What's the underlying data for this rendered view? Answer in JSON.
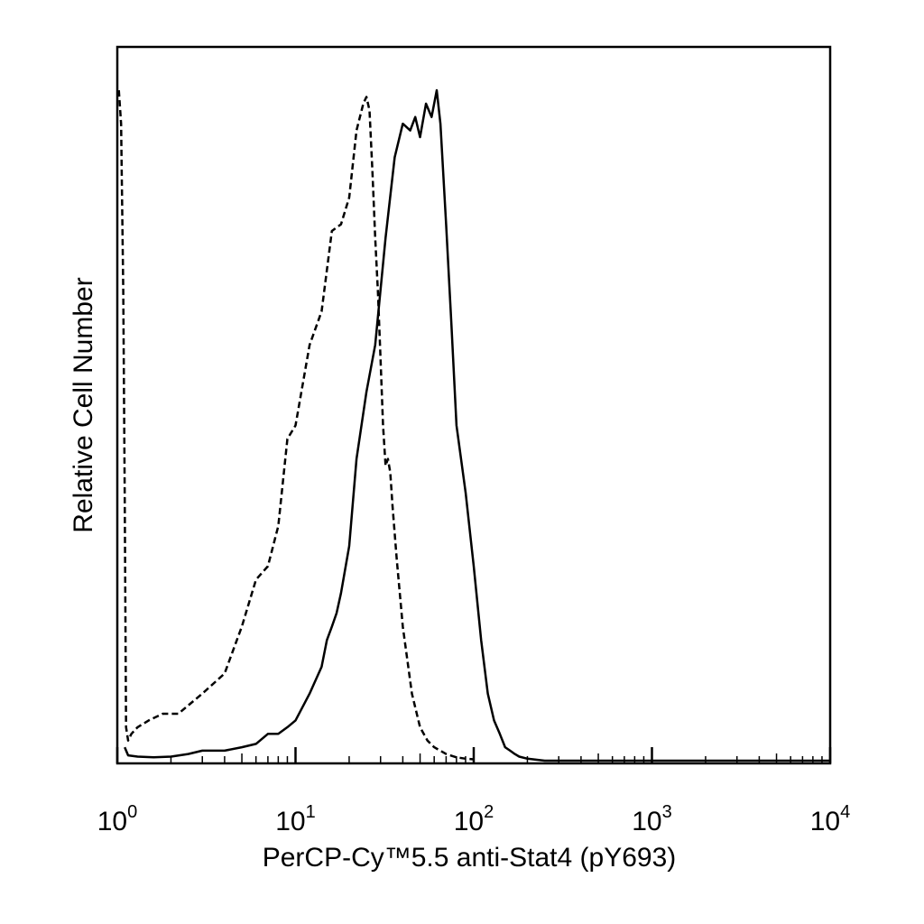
{
  "chart_data": {
    "type": "line",
    "title": "",
    "xlabel": "PerCP-Cy™5.5 anti-Stat4 (pY693)",
    "ylabel": "Relative Cell Number",
    "x_scale": "log",
    "xlim": [
      1,
      10000
    ],
    "ylim": [
      0,
      1
    ],
    "grid": false,
    "legend": "none",
    "x_ticks": [
      {
        "value": 1,
        "base": "10",
        "exp": "0"
      },
      {
        "value": 10,
        "base": "10",
        "exp": "1"
      },
      {
        "value": 100,
        "base": "10",
        "exp": "2"
      },
      {
        "value": 1000,
        "base": "10",
        "exp": "3"
      },
      {
        "value": 10000,
        "base": "10",
        "exp": "4"
      }
    ],
    "series": [
      {
        "style": "dashed",
        "color": "#000000",
        "x": [
          1.02,
          1.05,
          1.08,
          1.1,
          1.12,
          1.15,
          1.2,
          1.3,
          1.5,
          1.8,
          2.2,
          3.0,
          4.0,
          5.0,
          6.0,
          7.0,
          8.0,
          9.0,
          10.0,
          12.0,
          14.0,
          16.0,
          18.0,
          20.0,
          22.0,
          24.0,
          25.0,
          26.0,
          27.0,
          28.0,
          29.0,
          30.0,
          31.0,
          32.0,
          33.0,
          34.0,
          35.0,
          37.0,
          40.0,
          45.0,
          50.0,
          55.0,
          60.0,
          70.0,
          80.0,
          90.0,
          100.0
        ],
        "y": [
          1.0,
          0.95,
          0.7,
          0.4,
          0.05,
          0.03,
          0.04,
          0.05,
          0.06,
          0.07,
          0.07,
          0.1,
          0.13,
          0.2,
          0.27,
          0.29,
          0.35,
          0.48,
          0.5,
          0.62,
          0.67,
          0.79,
          0.8,
          0.84,
          0.94,
          0.98,
          0.99,
          0.97,
          0.88,
          0.78,
          0.7,
          0.6,
          0.5,
          0.44,
          0.45,
          0.43,
          0.38,
          0.3,
          0.2,
          0.1,
          0.05,
          0.03,
          0.02,
          0.01,
          0.005,
          0.003,
          0.002
        ]
      },
      {
        "style": "solid",
        "color": "#000000",
        "x": [
          1.1,
          1.15,
          1.3,
          1.6,
          2.0,
          2.5,
          3.0,
          4.0,
          5.0,
          6.0,
          7.0,
          8.0,
          9.0,
          10.0,
          12.0,
          14.0,
          15.0,
          16.0,
          17.0,
          18.0,
          20.0,
          22.0,
          25.0,
          28.0,
          32.0,
          36.0,
          40.0,
          44.0,
          47.0,
          50.0,
          54.0,
          58.0,
          62.0,
          65.0,
          70.0,
          75.0,
          80.0,
          90.0,
          100.0,
          110.0,
          120.0,
          130.0,
          140.0,
          150.0,
          160.0,
          170.0,
          180.0,
          200.0,
          250.0,
          10000.0
        ],
        "y": [
          0.02,
          0.008,
          0.006,
          0.005,
          0.006,
          0.01,
          0.015,
          0.015,
          0.02,
          0.025,
          0.04,
          0.04,
          0.05,
          0.06,
          0.1,
          0.14,
          0.18,
          0.2,
          0.22,
          0.25,
          0.32,
          0.45,
          0.55,
          0.62,
          0.78,
          0.9,
          0.95,
          0.94,
          0.96,
          0.93,
          0.98,
          0.96,
          1.0,
          0.95,
          0.8,
          0.65,
          0.5,
          0.4,
          0.29,
          0.18,
          0.1,
          0.06,
          0.04,
          0.02,
          0.015,
          0.01,
          0.006,
          0.003,
          0.0,
          0.0
        ]
      }
    ]
  }
}
